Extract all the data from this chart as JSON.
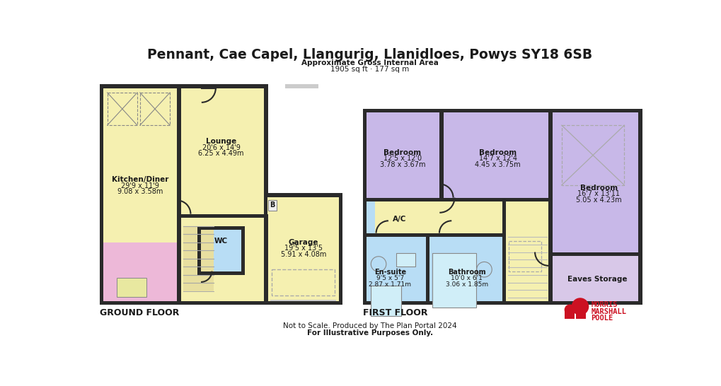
{
  "title": "Pennant, Cae Capel, Llangurig, Llanidloes, Powys SY18 6SB",
  "subtitle1": "Approximate Gross Internal Area",
  "subtitle2": "1905 sq ft · 177 sq m",
  "ground_floor_label": "GROUND FLOOR",
  "first_floor_label": "FIRST FLOOR",
  "footer1": "Not to Scale. Produced by The Plan Portal 2024",
  "footer2": "For Illustrative Purposes Only.",
  "bg_color": "#ffffff",
  "wall_color": "#2a2a2a",
  "yellow_room": "#f5f0b0",
  "pink_room": "#edb8d8",
  "blue_room": "#b8ddf5",
  "purple_room": "#c8b8e8",
  "eaves_color": "#d8c8e8",
  "logo_color": "#cc1122",
  "window_color": "#cccccc",
  "stair_color": "#e8dfa0"
}
